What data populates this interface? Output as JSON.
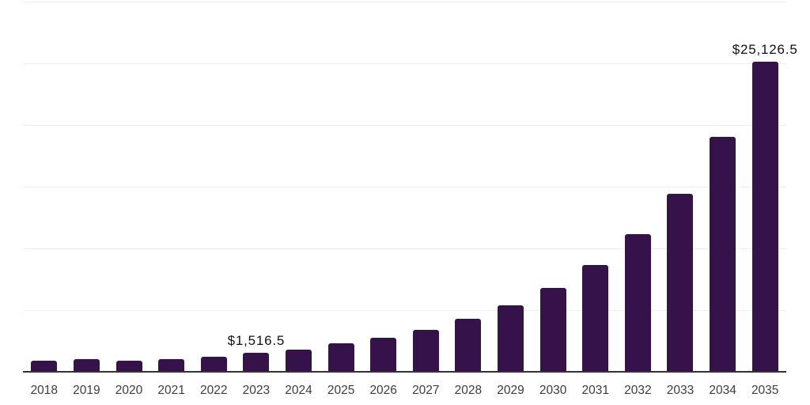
{
  "chart_data": {
    "type": "bar",
    "title": "",
    "xlabel": "",
    "ylabel": "",
    "categories": [
      "2018",
      "2019",
      "2020",
      "2021",
      "2022",
      "2023",
      "2024",
      "2025",
      "2026",
      "2027",
      "2028",
      "2029",
      "2030",
      "2031",
      "2032",
      "2033",
      "2034",
      "2035"
    ],
    "values": [
      920,
      1030,
      880,
      1030,
      1200,
      1516.5,
      1800,
      2290,
      2740,
      3420,
      4300,
      5410,
      6810,
      8650,
      11150,
      14450,
      19020,
      25126.5
    ],
    "annotations": [
      {
        "category": "2023",
        "text": "$1,516.5"
      },
      {
        "category": "2035",
        "text": "$25,126.5"
      }
    ],
    "ylim": [
      0,
      30000
    ],
    "gridline_step": 5000,
    "grid": true,
    "legend": false,
    "y_axis_labels_visible": false,
    "colors": {
      "bar": "#36124a",
      "axis": "#333333",
      "grid": "#efefef",
      "tick_label": "#3d3d3d",
      "data_label": "#111111",
      "background": "#ffffff"
    }
  }
}
